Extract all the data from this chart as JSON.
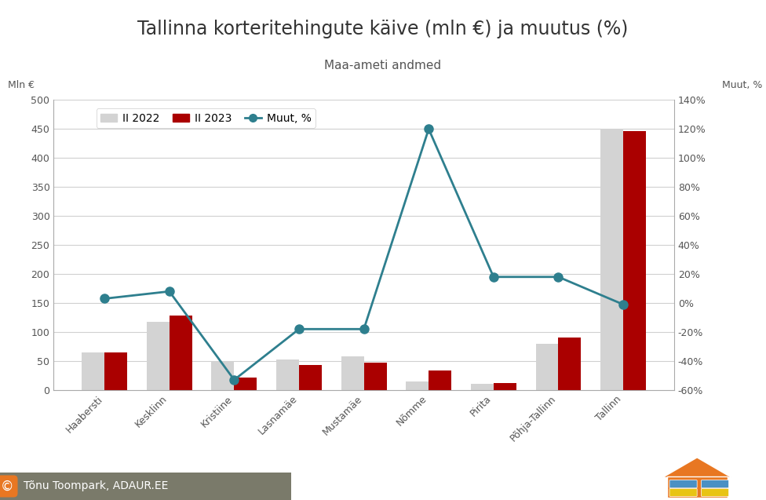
{
  "title": "Tallinna korteritehingute käive (mln €) ja muutus (%)",
  "subtitle": "Maa-ameti andmed",
  "ylabel_left": "Mln €",
  "ylabel_right": "Muut, %",
  "categories": [
    "Haabersti",
    "Kesklinn",
    "Kristiine",
    "Lasnamäe",
    "Mustamäe",
    "Nõmme",
    "Pirita",
    "Põhja-Tallinn",
    "Tallinn"
  ],
  "values_2022": [
    65,
    118,
    48,
    53,
    58,
    15,
    10,
    80,
    450
  ],
  "values_2023": [
    65,
    128,
    22,
    43,
    47,
    33,
    12,
    90,
    447
  ],
  "muutus": [
    3,
    8,
    -53,
    -18,
    -18,
    120,
    18,
    18,
    -1
  ],
  "bar_color_2022": "#d3d3d3",
  "bar_color_2023": "#aa0000",
  "line_color": "#2e7f8e",
  "ylim_left": [
    0,
    500
  ],
  "ylim_right": [
    -60,
    140
  ],
  "yticks_left": [
    0,
    50,
    100,
    150,
    200,
    250,
    300,
    350,
    400,
    450,
    500
  ],
  "yticks_right": [
    -60,
    -40,
    -20,
    0,
    20,
    40,
    60,
    80,
    100,
    120,
    140
  ],
  "legend_2022": "II 2022",
  "legend_2023": "II 2023",
  "legend_line": "Muut, %",
  "background_color": "#ffffff",
  "grid_color": "#d0d0d0",
  "title_fontsize": 17,
  "subtitle_fontsize": 11,
  "axis_label_fontsize": 9,
  "tick_fontsize": 9,
  "watermark_text": "Tõnu Toompark, ADAUR.EE",
  "title_color": "#333333",
  "subtitle_color": "#555555",
  "tick_color": "#555555"
}
